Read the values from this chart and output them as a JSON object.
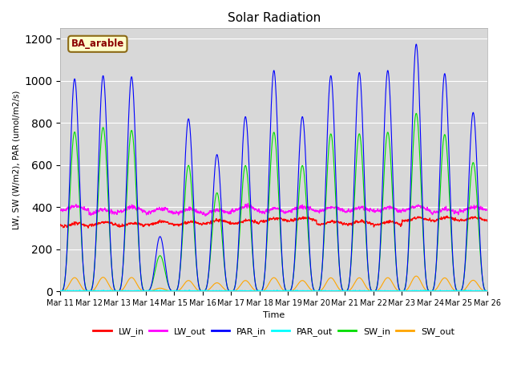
{
  "title": "Solar Radiation",
  "xlabel": "Time",
  "ylabel": "LW, SW (W/m2), PAR (umol/m2/s)",
  "annotation": "BA_arable",
  "ylim": [
    0,
    1250
  ],
  "background_color": "#ffffff",
  "plot_bg_color": "#d8d8d8",
  "series_colors": {
    "LW_in": "#ff0000",
    "LW_out": "#ff00ff",
    "PAR_in": "#0000ff",
    "PAR_out": "#00ffff",
    "SW_in": "#00dd00",
    "SW_out": "#ffa500"
  },
  "tick_labels": [
    "Mar 11",
    "Mar 12",
    "Mar 13",
    "Mar 14",
    "Mar 15",
    "Mar 16",
    "Mar 17",
    "Mar 18",
    "Mar 19",
    "Mar 20",
    "Mar 21",
    "Mar 22",
    "Mar 23",
    "Mar 24",
    "Mar 25",
    "Mar 26"
  ],
  "n_days": 15,
  "points_per_day": 288,
  "par_peaks": [
    1010,
    1025,
    1020,
    260,
    820,
    650,
    830,
    1050,
    830,
    1025,
    1040,
    1050,
    1175,
    1035,
    850
  ],
  "sw_ratio": [
    0.75,
    0.76,
    0.75,
    0.65,
    0.73,
    0.72,
    0.72,
    0.72,
    0.72,
    0.73,
    0.72,
    0.72,
    0.72,
    0.72,
    0.72
  ],
  "sw_out_ratio": 0.085,
  "lw_in_base": 322,
  "lw_out_base": 378,
  "grid_color": "#ffffff",
  "legend_fontsize": 8,
  "title_fontsize": 11,
  "tick_fontsize": 7
}
